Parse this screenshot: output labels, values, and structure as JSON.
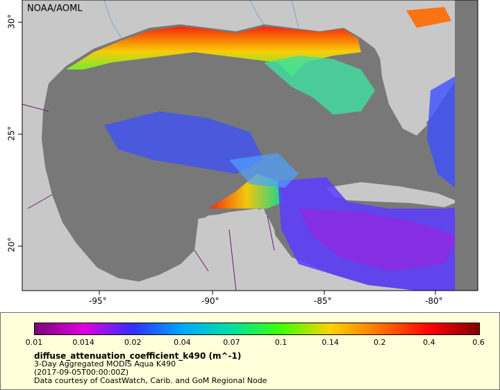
{
  "map": {
    "credit": "NOAA/AOML",
    "x_ticks": [
      "-95°",
      "-90°",
      "-85°",
      "-80°"
    ],
    "y_ticks": [
      "30°",
      "25°",
      "20°"
    ],
    "colors": {
      "land": "#c8c8c8",
      "no_data_ocean": "#787878",
      "rivers": "#7aa6d6",
      "borders": "#6a1b6a"
    }
  },
  "legend": {
    "colorbar_ticks": [
      "0.01",
      "0.014",
      "0.02",
      "0.04",
      "0.07",
      "0.1",
      "0.14",
      "0.2",
      "0.4",
      "0.6"
    ],
    "colorbar_colors": [
      "#7a007a",
      "#e000e0",
      "#3030ff",
      "#00a8ff",
      "#00e0a0",
      "#40ff00",
      "#ffd000",
      "#ff7000",
      "#ff0000",
      "#800000"
    ],
    "title": "diffuse_attenuation_coefficient_k490 (m^-1)",
    "line2": "3-Day Aggregated MODIS Aqua K490",
    "line3": "(2017-09-05T00:00:00Z)",
    "line4": "Data courtesy of CoastWatch, Carib. and GoM Regional Node"
  }
}
